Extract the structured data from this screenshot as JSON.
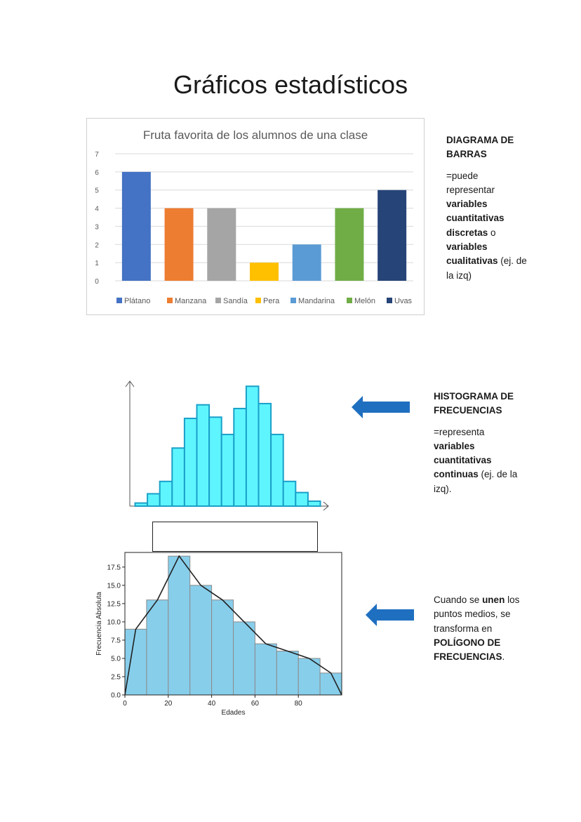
{
  "title": "Gráficos estadísticos",
  "colors": {
    "arrow": "#1f6fc0",
    "histogram_fill": "#5ff5ff",
    "histogram_stroke": "#1aa0c8",
    "freq_fill": "#87ceeb"
  },
  "bar_section": {
    "heading_line1": "DIAGRAMA DE",
    "heading_line2": "BARRAS",
    "desc": {
      "l1": "=puede",
      "l2": "representar",
      "l3_bold": "variables",
      "l4_bold": "cuantitativas",
      "l5_bold": "discretas",
      "l5_rest": " o",
      "l6_bold": "variables",
      "l7_bold": "cualitativas",
      "l7_rest": " (ej. de",
      "l8": "la izq)"
    }
  },
  "hist_section": {
    "heading_line1": "HISTOGRAMA DE",
    "heading_line2": "FRECUENCIAS",
    "desc": {
      "l1": "=representa",
      "l2_bold": "variables",
      "l3_bold": "cuantitativas",
      "l4_bold": "continuas",
      "l4_rest": " (ej. de la",
      "l5": "izq)."
    }
  },
  "poly_section": {
    "l1_a": "Cuando se ",
    "l1_bold": "unen",
    "l1_b": " los",
    "l2": "puntos medios, se",
    "l3": "transforma en",
    "l4_bold": "POLÍGONO DE",
    "l5_bold": "FRECUENCIAS",
    "l5_rest": "."
  },
  "chart_data": [
    {
      "type": "bar",
      "title": "Fruta favorita de los alumnos de una clase",
      "categories": [
        "Plátano",
        "Manzana",
        "Sandía",
        "Pera",
        "Mandarina",
        "Melón",
        "Uvas"
      ],
      "values": [
        6,
        4,
        4,
        1,
        2,
        4,
        5
      ],
      "colors": [
        "#4472c4",
        "#ed7d31",
        "#a5a5a5",
        "#ffc000",
        "#5b9bd5",
        "#70ad47",
        "#264478"
      ],
      "ylim": [
        0,
        7
      ],
      "yticks": [
        "0",
        "1",
        "2",
        "3",
        "4",
        "5",
        "6",
        "7"
      ],
      "legend": "bottom",
      "grid": true
    },
    {
      "type": "bar",
      "subtype": "histogram",
      "values": [
        0.25,
        1,
        2,
        4.7,
        7.1,
        8.2,
        7.2,
        5.8,
        7.9,
        9.7,
        8.3,
        5.8,
        2,
        1.1,
        0.4
      ],
      "xlabel": "",
      "ylabel": "",
      "axis_arrows": true
    },
    {
      "type": "bar",
      "subtype": "histogram_with_polygon",
      "bin_edges": [
        0,
        10,
        20,
        30,
        40,
        50,
        60,
        70,
        80,
        90,
        100
      ],
      "values": [
        9,
        13,
        19,
        15,
        13,
        10,
        7,
        6,
        5,
        3
      ],
      "polygon_x": [
        0,
        5,
        15,
        25,
        35,
        45,
        55,
        65,
        75,
        85,
        95,
        100
      ],
      "polygon_y": [
        0,
        9,
        13,
        19,
        15,
        13,
        10,
        7,
        6,
        5,
        3,
        0
      ],
      "xlim": [
        0,
        100
      ],
      "ylim": [
        0,
        19.5
      ],
      "xticks": [
        "0",
        "20",
        "40",
        "60",
        "80"
      ],
      "yticks": [
        "0.0",
        "2.5",
        "5.0",
        "7.5",
        "10.0",
        "12.5",
        "15.0",
        "17.5"
      ],
      "xlabel": "Edades",
      "ylabel": "Frecuencia Absoluta"
    }
  ]
}
